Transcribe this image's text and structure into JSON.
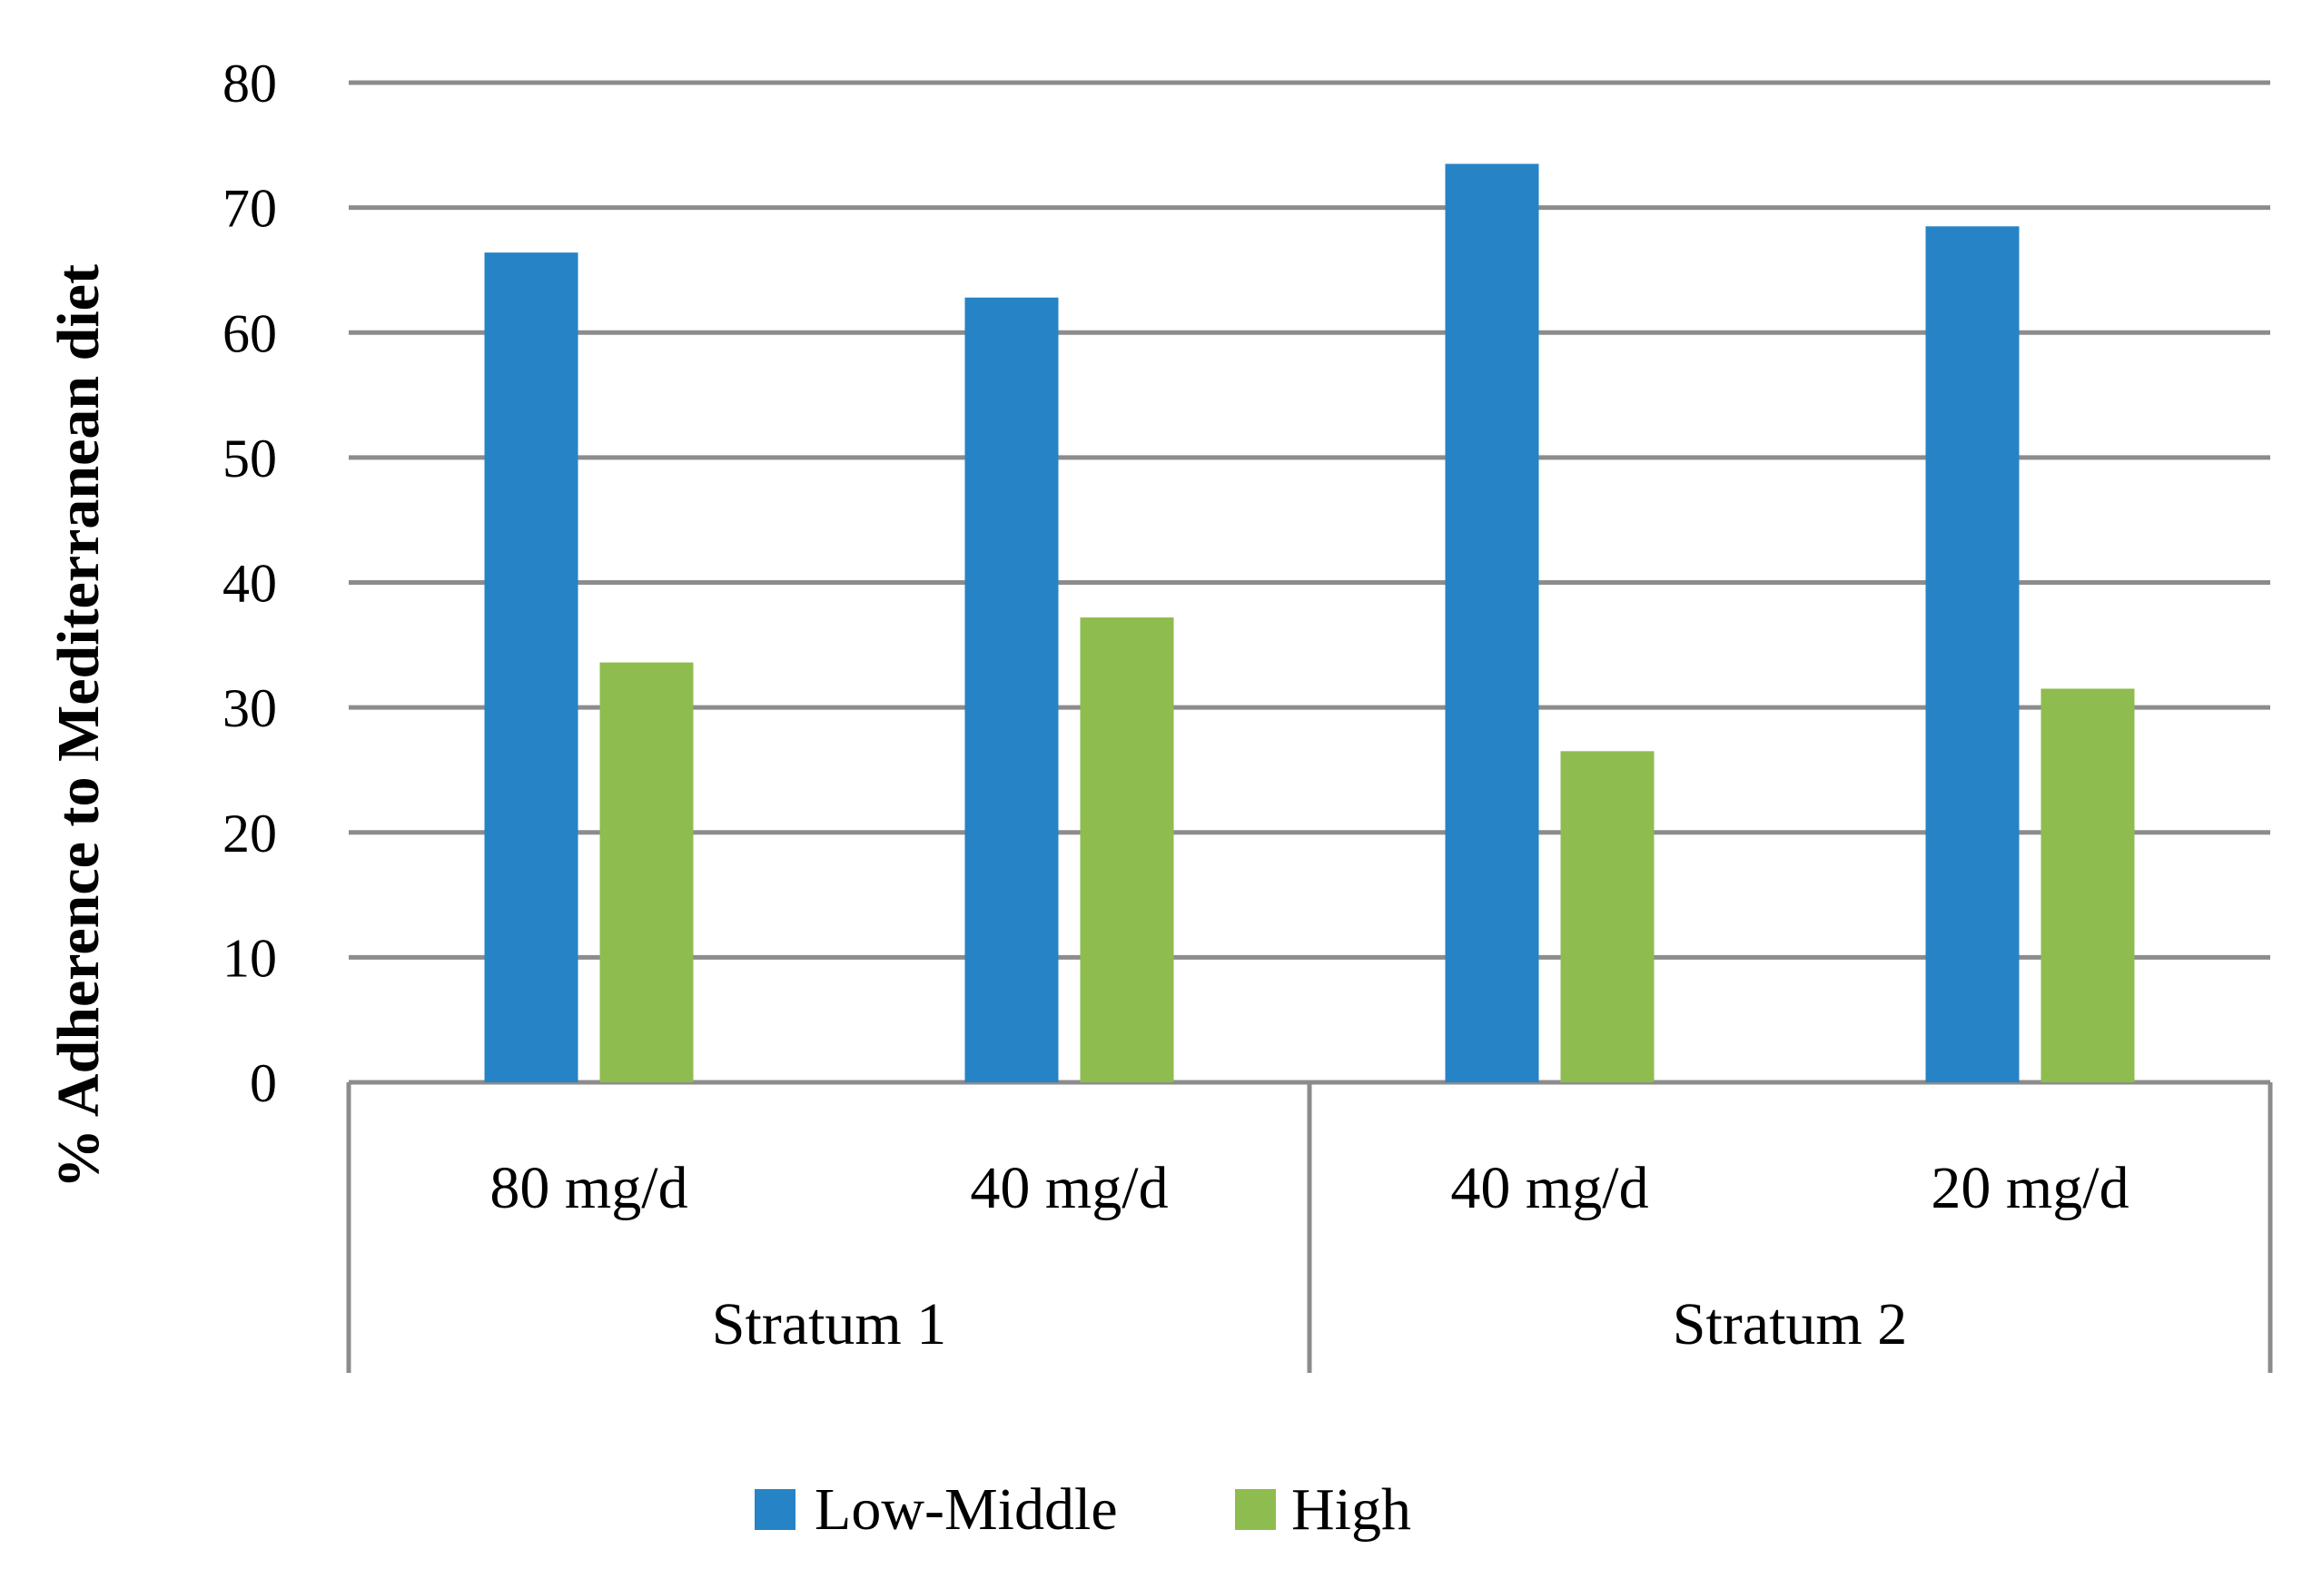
{
  "chart_data": {
    "type": "bar",
    "title": "",
    "xlabel": "",
    "ylabel": "% Adherence to Mediterranean diet",
    "ylim": [
      0,
      80
    ],
    "yticks": [
      0,
      10,
      20,
      30,
      40,
      50,
      60,
      70,
      80
    ],
    "grid": true,
    "legend_position": "bottom",
    "categories": [
      "80 mg/d",
      "40 mg/d",
      "40 mg/d",
      "20 mg/d"
    ],
    "groups": [
      {
        "label": "Stratum 1",
        "categories": [
          0,
          1
        ]
      },
      {
        "label": "Stratum 2",
        "categories": [
          2,
          3
        ]
      }
    ],
    "series": [
      {
        "name": "Low-Middle",
        "color": "#2683C6",
        "values": [
          66.4,
          62.8,
          73.5,
          68.5
        ]
      },
      {
        "name": "High",
        "color": "#8FBC4F",
        "values": [
          33.6,
          37.2,
          26.5,
          31.5
        ]
      }
    ]
  }
}
